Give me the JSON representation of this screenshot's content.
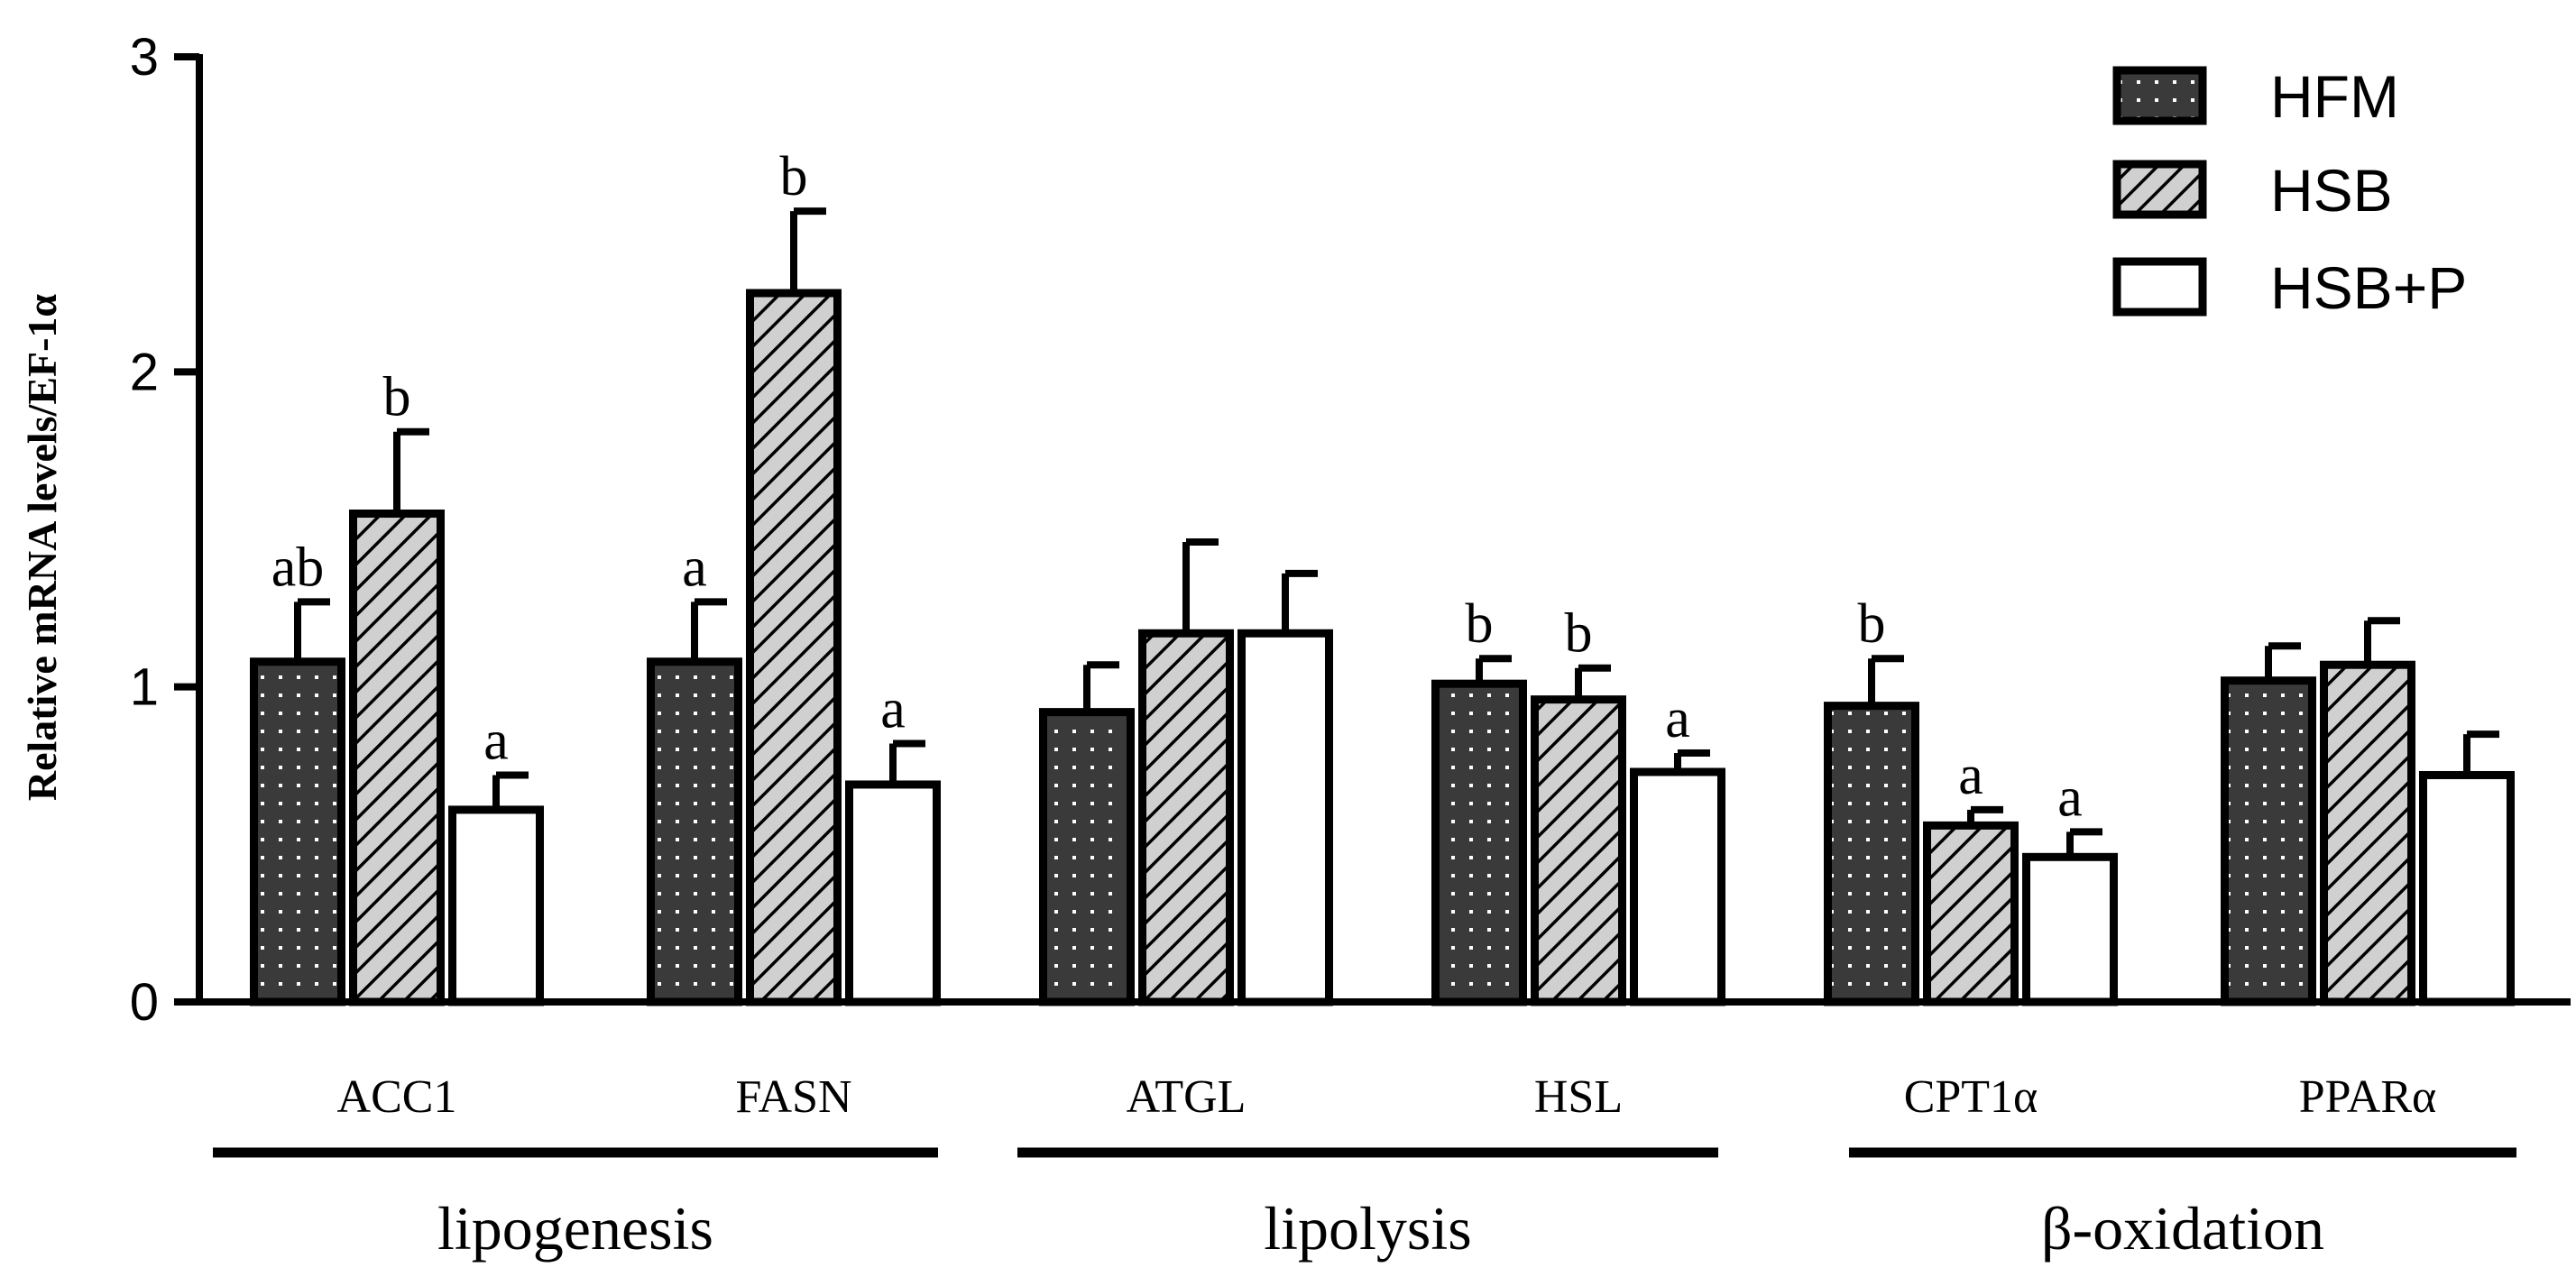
{
  "chart_data": {
    "type": "bar",
    "title": "",
    "xlabel": "",
    "ylabel": "Relative mRNA levels/EF-1α",
    "ylim": [
      0,
      3
    ],
    "yticks": [
      "0",
      "1",
      "2",
      "3"
    ],
    "categories": [
      "ACC1",
      "FASN",
      "ATGL",
      "HSL",
      "CPT1α",
      "PPARα"
    ],
    "series": [
      {
        "name": "HFM",
        "pattern": "dotted-dark",
        "values": [
          1.08,
          1.08,
          0.92,
          1.01,
          0.94,
          1.02
        ],
        "errors": [
          0.19,
          0.19,
          0.15,
          0.08,
          0.15,
          0.11
        ],
        "letters": [
          "ab",
          "a",
          "",
          "b",
          "b",
          ""
        ]
      },
      {
        "name": "HSB",
        "pattern": "hatched-gray",
        "values": [
          1.55,
          2.25,
          1.17,
          0.96,
          0.56,
          1.07
        ],
        "errors": [
          0.26,
          0.26,
          0.29,
          0.1,
          0.05,
          0.14
        ],
        "letters": [
          "b",
          "b",
          "",
          "b",
          "a",
          ""
        ]
      },
      {
        "name": "HSB+P",
        "pattern": "open-white",
        "values": [
          0.61,
          0.69,
          1.17,
          0.73,
          0.46,
          0.72
        ],
        "errors": [
          0.11,
          0.13,
          0.19,
          0.06,
          0.08,
          0.13
        ],
        "letters": [
          "a",
          "a",
          "",
          "a",
          "a",
          ""
        ]
      }
    ],
    "groups": [
      {
        "label": "lipogenesis",
        "categories": [
          "ACC1",
          "FASN"
        ]
      },
      {
        "label": "lipolysis",
        "categories": [
          "ATGL",
          "HSL"
        ]
      },
      {
        "label": "β-oxidation",
        "categories": [
          "CPT1α",
          "PPARα"
        ]
      }
    ],
    "legend_position": "top-right",
    "colors": {
      "hfm_fill": "#3a3a3a",
      "hsb_fill": "#d0d0d0",
      "hsbp_fill": "#ffffff",
      "stroke": "#000000"
    }
  }
}
